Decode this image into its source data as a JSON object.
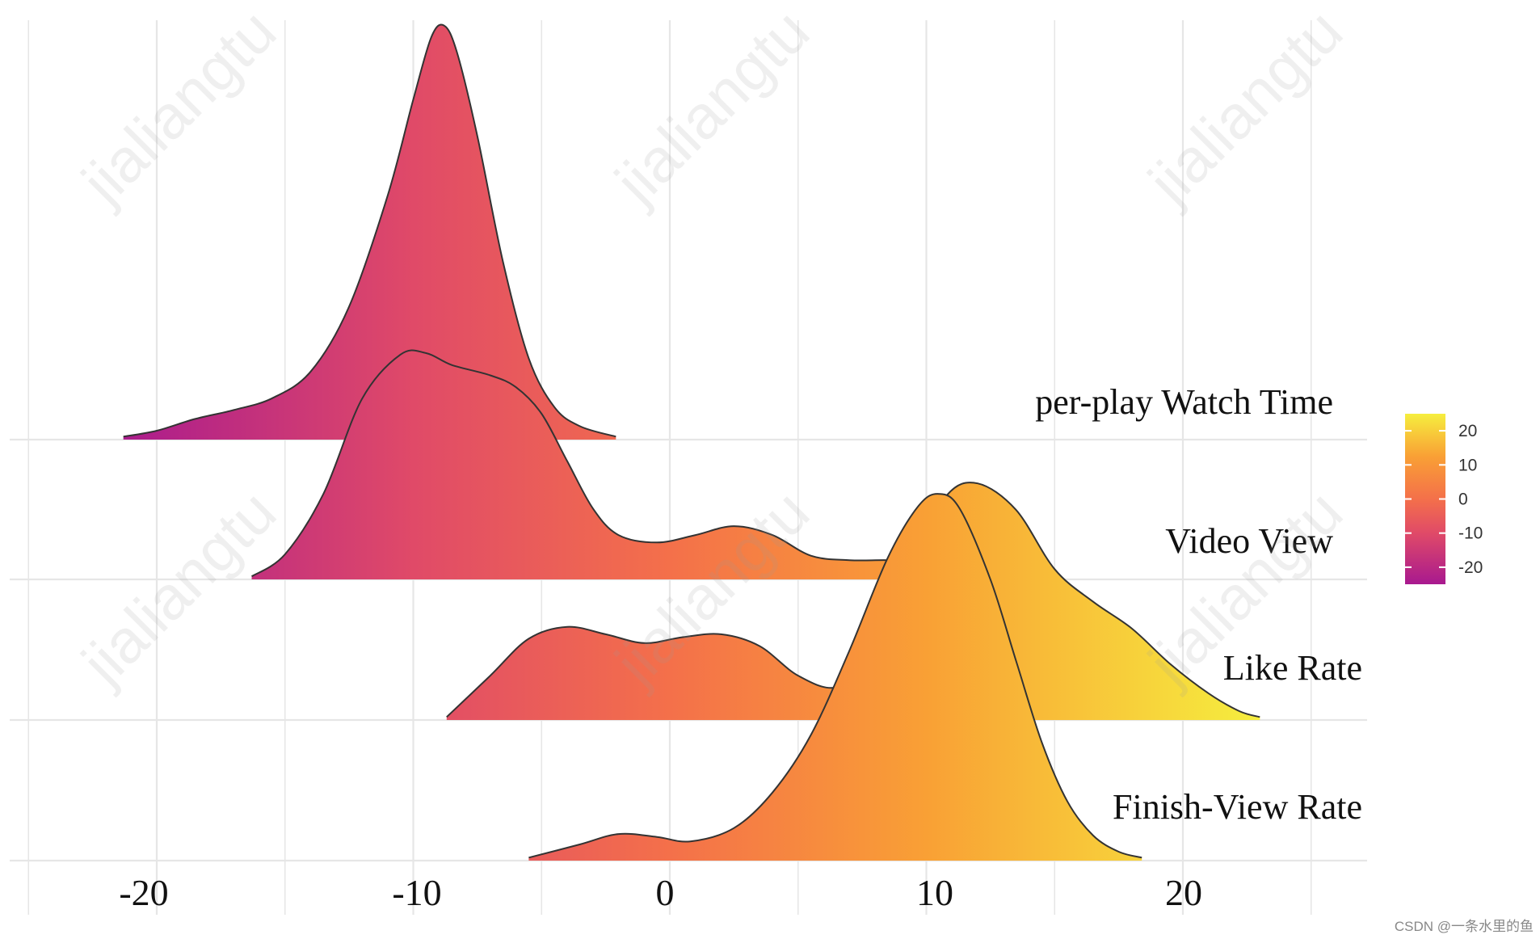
{
  "chart_data": {
    "type": "ridgeline",
    "title": "",
    "xlabel": "",
    "ylabel": "",
    "xlim": [
      -25,
      28
    ],
    "x_ticks": [
      -20,
      -10,
      0,
      10,
      20
    ],
    "grid": true,
    "colors": {
      "low": "#a8198f",
      "mid_low": "#e04a68",
      "mid": "#f4704a",
      "mid_high": "#f9a035",
      "high": "#f6ee3e",
      "outline": "#333333",
      "grid": "#e6e6e6"
    },
    "series": [
      {
        "name": "per-play Watch Time",
        "x_range": [
          -21.3,
          -2.1
        ],
        "points": [
          [
            -21.3,
            0.02
          ],
          [
            -20,
            0.06
          ],
          [
            -18.5,
            0.14
          ],
          [
            -17,
            0.2
          ],
          [
            -15.5,
            0.28
          ],
          [
            -14,
            0.46
          ],
          [
            -12.5,
            0.9
          ],
          [
            -11,
            1.65
          ],
          [
            -10,
            2.3
          ],
          [
            -9.3,
            2.72
          ],
          [
            -8.8,
            2.8
          ],
          [
            -8.3,
            2.62
          ],
          [
            -7.5,
            2.05
          ],
          [
            -6.5,
            1.2
          ],
          [
            -5.5,
            0.55
          ],
          [
            -4.5,
            0.22
          ],
          [
            -3.5,
            0.09
          ],
          [
            -2.1,
            0.02
          ]
        ]
      },
      {
        "name": "Video View",
        "x_range": [
          -16.3,
          10
        ],
        "points": [
          [
            -16.3,
            0.02
          ],
          [
            -15,
            0.17
          ],
          [
            -13.5,
            0.58
          ],
          [
            -12,
            1.22
          ],
          [
            -10.5,
            1.52
          ],
          [
            -9.5,
            1.53
          ],
          [
            -8.5,
            1.45
          ],
          [
            -7,
            1.38
          ],
          [
            -6,
            1.3
          ],
          [
            -5,
            1.12
          ],
          [
            -4,
            0.8
          ],
          [
            -3,
            0.48
          ],
          [
            -2,
            0.3
          ],
          [
            -0.5,
            0.25
          ],
          [
            1,
            0.3
          ],
          [
            2.5,
            0.36
          ],
          [
            4,
            0.3
          ],
          [
            5.5,
            0.16
          ],
          [
            7,
            0.13
          ],
          [
            8.5,
            0.13
          ],
          [
            10,
            0.12
          ]
        ]
      },
      {
        "name": "Like Rate",
        "x_range": [
          -8.7,
          23
        ],
        "points": [
          [
            -8.7,
            0.02
          ],
          [
            -7,
            0.3
          ],
          [
            -5.5,
            0.55
          ],
          [
            -4,
            0.63
          ],
          [
            -2.5,
            0.58
          ],
          [
            -1,
            0.52
          ],
          [
            0.5,
            0.56
          ],
          [
            2,
            0.58
          ],
          [
            3.5,
            0.5
          ],
          [
            5,
            0.3
          ],
          [
            6.5,
            0.22
          ],
          [
            8,
            0.4
          ],
          [
            9.5,
            1.1
          ],
          [
            10.8,
            1.52
          ],
          [
            12,
            1.6
          ],
          [
            13.5,
            1.42
          ],
          [
            15,
            1.02
          ],
          [
            16.5,
            0.8
          ],
          [
            18,
            0.62
          ],
          [
            19.5,
            0.38
          ],
          [
            21,
            0.18
          ],
          [
            22.2,
            0.06
          ],
          [
            23,
            0.02
          ]
        ]
      },
      {
        "name": "Finish-View Rate",
        "x_range": [
          -5.5,
          18.4
        ],
        "points": [
          [
            -5.5,
            0.02
          ],
          [
            -3.5,
            0.11
          ],
          [
            -2,
            0.18
          ],
          [
            -0.5,
            0.16
          ],
          [
            0.8,
            0.13
          ],
          [
            2.5,
            0.22
          ],
          [
            4,
            0.46
          ],
          [
            5.5,
            0.85
          ],
          [
            7,
            1.42
          ],
          [
            8.5,
            2.05
          ],
          [
            9.7,
            2.4
          ],
          [
            10.5,
            2.48
          ],
          [
            11.3,
            2.38
          ],
          [
            12.5,
            1.9
          ],
          [
            13.5,
            1.35
          ],
          [
            14.5,
            0.8
          ],
          [
            15.5,
            0.4
          ],
          [
            16.5,
            0.17
          ],
          [
            17.5,
            0.06
          ],
          [
            18.4,
            0.02
          ]
        ]
      }
    ],
    "legend": {
      "title": "",
      "placement": "right",
      "range": [
        -25,
        25
      ],
      "tick_labels": [
        "20",
        "10",
        "0",
        "-10",
        "-20"
      ]
    },
    "watermark": "jialiangtu",
    "credit": "CSDN @一条水里的鱼"
  }
}
